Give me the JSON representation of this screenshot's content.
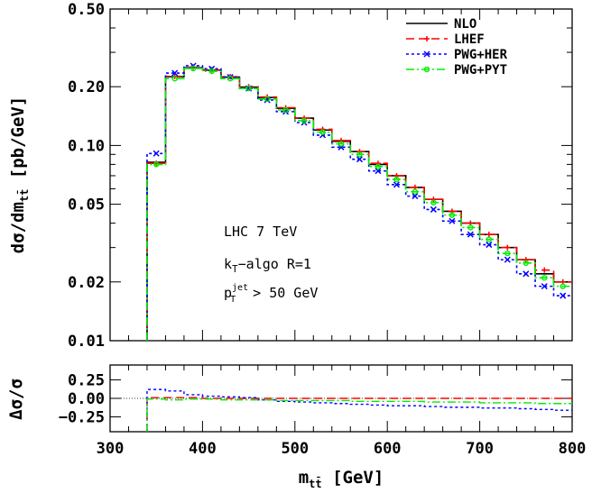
{
  "chart_data": [
    {
      "type": "line",
      "panel": "main",
      "ylabel": "dσ/dm",
      "ylabel_sub": "tt̄",
      "ylabel_unit": "[pb/GeV]",
      "yscale": "log",
      "ylim": [
        0.01,
        0.5
      ],
      "xlim": [
        300,
        800
      ],
      "y_ticks": [
        0.01,
        0.02,
        0.05,
        0.1,
        0.2,
        0.5
      ],
      "y_tick_labels": [
        "0.01",
        "0.02",
        "0.05",
        "0.10",
        "0.20",
        "0.50"
      ],
      "bin_edges": [
        340,
        360,
        380,
        400,
        420,
        440,
        460,
        480,
        500,
        520,
        540,
        560,
        580,
        600,
        620,
        640,
        660,
        680,
        700,
        720,
        740,
        760,
        780,
        800
      ],
      "series": [
        {
          "name": "NLO",
          "color": "#000000",
          "dash": "solid",
          "marker": "none",
          "values": [
            0.082,
            0.225,
            0.25,
            0.243,
            0.224,
            0.199,
            0.176,
            0.155,
            0.138,
            0.12,
            0.105,
            0.093,
            0.08,
            0.07,
            0.061,
            0.053,
            0.046,
            0.04,
            0.035,
            0.03,
            0.026,
            0.022,
            0.02
          ]
        },
        {
          "name": "LHEF",
          "color": "#ff0000",
          "dash": "dashed",
          "marker": "plus",
          "values": [
            0.081,
            0.226,
            0.252,
            0.244,
            0.225,
            0.2,
            0.177,
            0.156,
            0.138,
            0.121,
            0.106,
            0.093,
            0.081,
            0.07,
            0.061,
            0.053,
            0.046,
            0.04,
            0.035,
            0.03,
            0.026,
            0.023,
            0.02
          ]
        },
        {
          "name": "PWG+HER",
          "color": "#0000ff",
          "dash": "dotted",
          "marker": "cross",
          "values": [
            0.091,
            0.235,
            0.256,
            0.247,
            0.224,
            0.196,
            0.171,
            0.149,
            0.131,
            0.113,
            0.098,
            0.085,
            0.074,
            0.063,
            0.055,
            0.047,
            0.041,
            0.035,
            0.031,
            0.026,
            0.022,
            0.019,
            0.017
          ]
        },
        {
          "name": "PWG+PYT",
          "color": "#00ee00",
          "dash": "dashdot",
          "marker": "circle",
          "values": [
            0.08,
            0.22,
            0.248,
            0.24,
            0.22,
            0.196,
            0.173,
            0.152,
            0.134,
            0.117,
            0.102,
            0.09,
            0.078,
            0.067,
            0.058,
            0.051,
            0.044,
            0.038,
            0.033,
            0.028,
            0.025,
            0.021,
            0.019
          ]
        }
      ]
    },
    {
      "type": "line",
      "panel": "ratio",
      "ylabel": "Δσ/σ",
      "ylim": [
        -0.45,
        0.45
      ],
      "y_ticks": [
        -0.25,
        0.0,
        0.25
      ],
      "y_tick_labels": [
        "−0.25",
        "0.00",
        "0.25"
      ],
      "xlabel": "m",
      "xlabel_sub": "tt̄",
      "xlabel_unit": "[GeV]",
      "xlim": [
        300,
        800
      ],
      "x_ticks": [
        300,
        400,
        500,
        600,
        700,
        800
      ],
      "x_tick_labels": [
        "300",
        "400",
        "500",
        "600",
        "700",
        "800"
      ],
      "bin_edges": [
        340,
        360,
        380,
        400,
        420,
        440,
        460,
        480,
        500,
        520,
        540,
        560,
        580,
        600,
        620,
        640,
        660,
        680,
        700,
        720,
        740,
        760,
        780,
        800
      ],
      "series": [
        {
          "name": "LHEF",
          "color": "#ff0000",
          "dash": "dashed",
          "values": [
            0.01,
            0.01,
            0.01,
            0.0,
            0.0,
            0.0,
            0.0,
            0.0,
            0.0,
            0.0,
            0.0,
            0.0,
            0.0,
            0.0,
            0.0,
            0.0,
            0.0,
            0.0,
            0.0,
            0.0,
            0.0,
            0.0,
            0.0
          ]
        },
        {
          "name": "PWG+HER",
          "color": "#0000ff",
          "dash": "dotted",
          "values": [
            0.12,
            0.1,
            0.05,
            0.03,
            0.02,
            0.01,
            -0.02,
            -0.04,
            -0.05,
            -0.06,
            -0.07,
            -0.08,
            -0.09,
            -0.1,
            -0.1,
            -0.11,
            -0.12,
            -0.12,
            -0.13,
            -0.13,
            -0.14,
            -0.15,
            -0.16
          ]
        },
        {
          "name": "PWG+PYT",
          "color": "#00ee00",
          "dash": "dashdot",
          "values": [
            -0.01,
            -0.02,
            -0.01,
            -0.01,
            -0.02,
            -0.02,
            -0.02,
            -0.03,
            -0.03,
            -0.03,
            -0.03,
            -0.04,
            -0.04,
            -0.04,
            -0.04,
            -0.05,
            -0.05,
            -0.05,
            -0.06,
            -0.06,
            -0.06,
            -0.07,
            -0.07
          ]
        }
      ]
    }
  ],
  "annotation": {
    "line1": "LHC 7 TeV",
    "line2_main": "k",
    "line2_sub": "T",
    "line2_rest": "−algo R=1",
    "line3_main": "p",
    "line3_sup": "jet",
    "line3_sub": "T",
    "line3_rest": " > 50 GeV"
  }
}
